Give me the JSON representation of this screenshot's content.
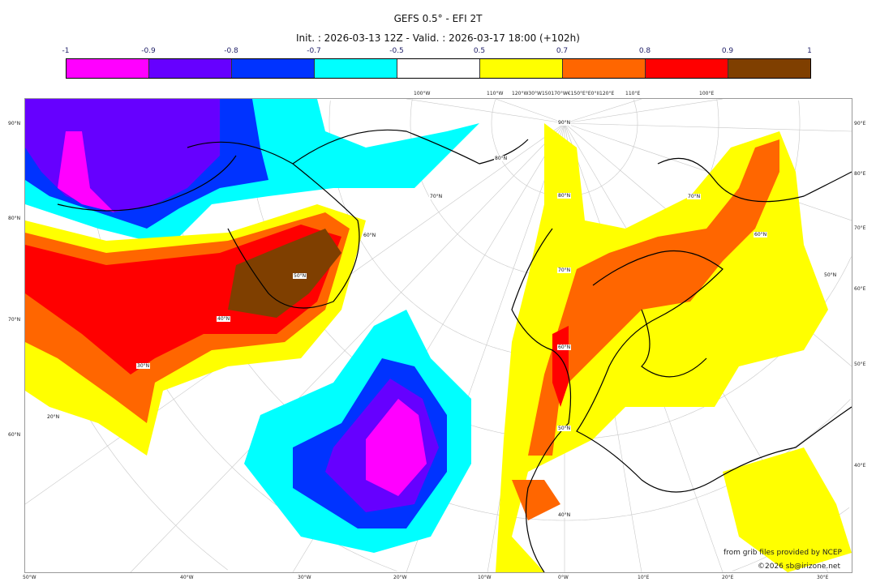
{
  "title": "GEFS 0.5° - EFI 2T",
  "subtitle": "Init. : 2026-03-13 12Z - Valid. : 2026-03-17 18:00 (+102h)",
  "colorbar": {
    "ticks": [
      "-1",
      "-0.9",
      "-0.8",
      "-0.7",
      "-0.5",
      "0.5",
      "0.7",
      "0.8",
      "0.9",
      "1"
    ],
    "colors": [
      "#ff00ff",
      "#6600ff",
      "#0033ff",
      "#00ffff",
      "#ffffff",
      "#ffff00",
      "#ff6600",
      "#ff0000",
      "#7f3f00"
    ]
  },
  "axes": {
    "left": [
      "90°N",
      "80°N",
      "70°N",
      "60°N"
    ],
    "right": [
      "90°E",
      "80°E",
      "70°E",
      "60°E",
      "50°E",
      "40°E"
    ],
    "bottom": [
      "50°W",
      "40°W",
      "30°W",
      "20°W",
      "10°W",
      "0°W",
      "10°E",
      "20°E",
      "30°E"
    ],
    "top": [
      "100°W",
      "110°W",
      "120°W30°W150170°W€150°E°E0°II120°E",
      "110°E",
      "100°E"
    ]
  },
  "map_labels": [
    "90°N",
    "80°N",
    "70°N",
    "60°N",
    "50°N",
    "40°N",
    "30°N",
    "20°N",
    "80°N",
    "70°N",
    "60°N",
    "50°N",
    "40°N",
    "70°N",
    "60°N",
    "50°N"
  ],
  "credits": {
    "source": "from grib files provided by NCEP",
    "copyright": "©2026 sb@irizone.net"
  }
}
